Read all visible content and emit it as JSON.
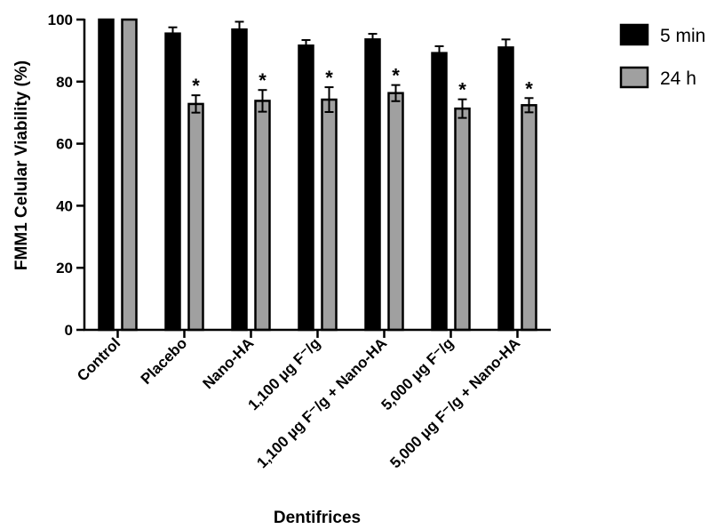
{
  "chart_data": {
    "type": "bar",
    "ylabel": "FMM1 Celular Viability (%)",
    "xlabel": "Dentifrices",
    "ylim": [
      0,
      100
    ],
    "yticks": [
      0,
      20,
      40,
      60,
      80,
      100
    ],
    "categories": [
      "Control",
      "Placebo",
      "Nano-HA",
      "1,100 µg F⁻/g",
      "1,100 µg F⁻/g + Nano-HA",
      "5,000 µg F⁻/g",
      "5,000 µg F⁻/g + Nano-HA"
    ],
    "series": [
      {
        "name": "5 min",
        "color": "#000000",
        "values": [
          100,
          95.5,
          96.8,
          91.6,
          93.6,
          89.2,
          91.0
        ],
        "errors": [
          0,
          2,
          2.5,
          1.8,
          1.8,
          2.2,
          2.6
        ]
      },
      {
        "name": "24 h",
        "color": "#a0a0a0",
        "values": [
          100,
          72.8,
          73.8,
          74.2,
          76.3,
          71.3,
          72.4
        ],
        "errors": [
          0,
          2.8,
          3.5,
          4.0,
          2.6,
          3.0,
          2.3
        ]
      }
    ],
    "significance": {
      "series": "24 h",
      "marker": "*",
      "flags": [
        false,
        true,
        true,
        true,
        true,
        true,
        true
      ]
    },
    "legend_position": "top-right"
  }
}
